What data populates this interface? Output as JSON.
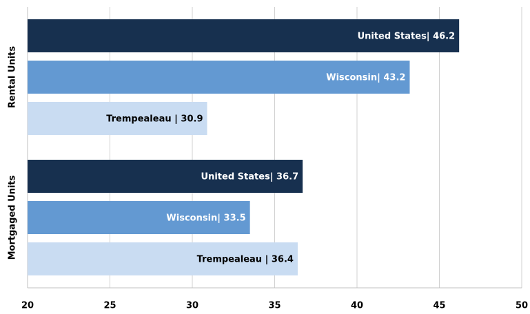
{
  "chart_data": {
    "type": "bar",
    "orientation": "horizontal",
    "categories": [
      "Rental Units",
      "Mortgaged Units"
    ],
    "series": [
      {
        "name": "United States",
        "color": "#17304f",
        "label_color": "#ffffff",
        "values": [
          46.2,
          36.7
        ],
        "value_labels": [
          "United States| 46.2",
          "United States| 36.7"
        ]
      },
      {
        "name": "Wisconsin",
        "color": "#6399d2",
        "label_color": "#ffffff",
        "values": [
          43.2,
          33.5
        ],
        "value_labels": [
          "Wisconsin| 43.2",
          "Wisconsin| 33.5"
        ]
      },
      {
        "name": "Trempealeau",
        "color": "#c9dcf2",
        "label_color": "#000000",
        "values": [
          30.9,
          36.4
        ],
        "value_labels": [
          "Trempealeau | 30.9",
          "Trempealeau | 36.4"
        ]
      }
    ],
    "xlim": [
      20,
      50
    ],
    "xticks": [
      20,
      25,
      30,
      35,
      40,
      45,
      50
    ],
    "grid": true
  }
}
